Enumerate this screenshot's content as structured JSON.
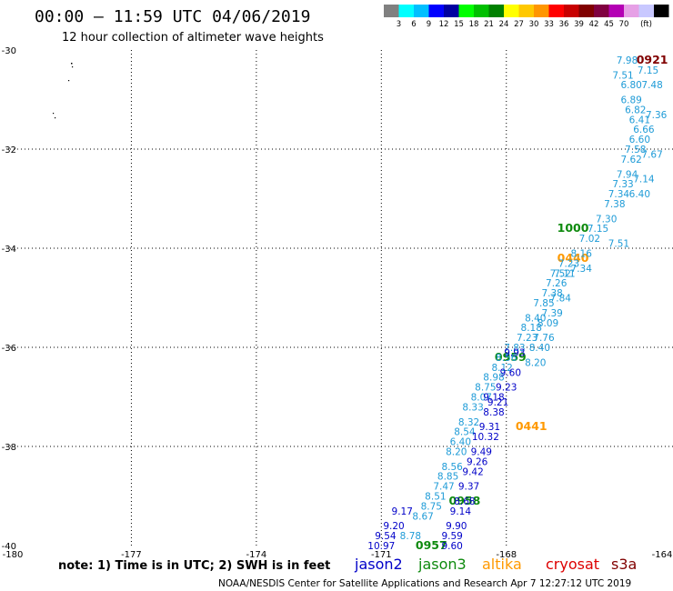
{
  "title": "00:00 – 11:59 UTC 04/06/2019",
  "subtitle": "12 hour collection of altimeter wave heights",
  "colorbar": {
    "colors": [
      "#808080",
      "#00ffff",
      "#00bfff",
      "#0000ff",
      "#0000a0",
      "#00ff00",
      "#00c000",
      "#008000",
      "#ffff00",
      "#ffc800",
      "#ff9600",
      "#ff0000",
      "#c80000",
      "#800000",
      "#800040",
      "#b400b4",
      "#e6a0e6",
      "#c8c8ff",
      "#000000"
    ],
    "labels": [
      "3",
      "6",
      "9",
      "12",
      "15",
      "18",
      "21",
      "24",
      "27",
      "30",
      "33",
      "36",
      "39",
      "42",
      "45",
      "70"
    ],
    "unit": "(ft)"
  },
  "chart_data": {
    "type": "scatter",
    "title": "00:00 – 11:59 UTC 04/06/2019",
    "subtitle": "12 hour collection of altimeter wave heights",
    "xlim": [
      -180,
      -164
    ],
    "ylim": [
      -40,
      -30
    ],
    "x_ticks": [
      -180,
      -177,
      -174,
      -171,
      -168,
      -164
    ],
    "x_tick_labels": [
      "-180",
      "-177",
      "-174",
      "-171",
      "-168",
      "-164"
    ],
    "y_ticks": [
      -30,
      -32,
      -34,
      -36,
      -38,
      -40
    ],
    "y_tick_labels": [
      "-30",
      "-32",
      "-34",
      "-36",
      "-38",
      "-40"
    ],
    "grid": true,
    "series": [
      {
        "name": "jason2",
        "color": "#0000c8",
        "points": []
      },
      {
        "name": "jason3",
        "color": "#0e8a0e",
        "points": [
          {
            "x": -167.9,
            "y": -36.2,
            "label": "0959"
          },
          {
            "x": -166.4,
            "y": -33.6,
            "label": "1000"
          },
          {
            "x": -169.0,
            "y": -39.1,
            "label": "0958"
          },
          {
            "x": -169.8,
            "y": -40.0,
            "label": "0957"
          }
        ]
      },
      {
        "name": "altika",
        "color": "#ff9900",
        "points": [
          {
            "x": -166.4,
            "y": -34.2,
            "label": "0440"
          },
          {
            "x": -167.4,
            "y": -37.6,
            "label": "0441"
          }
        ]
      },
      {
        "name": "cryosat",
        "color": "#dd0000",
        "points": []
      },
      {
        "name": "s3a",
        "color": "#800000",
        "points": [
          {
            "x": -164.5,
            "y": -30.2,
            "label": "0921"
          }
        ]
      },
      {
        "name": "",
        "color": "#1e9bd7",
        "track": "west",
        "points": [
          {
            "x": -165.1,
            "y": -30.2,
            "value": "7.98"
          },
          {
            "x": -165.2,
            "y": -30.5,
            "value": "7.51"
          },
          {
            "x": -165.0,
            "y": -30.7,
            "value": "6.80"
          },
          {
            "x": -165.0,
            "y": -31.0,
            "value": "6.89"
          },
          {
            "x": -164.9,
            "y": -31.2,
            "value": "6.82"
          },
          {
            "x": -164.8,
            "y": -31.4,
            "value": "6.41"
          },
          {
            "x": -164.7,
            "y": -31.6,
            "value": "6.66"
          },
          {
            "x": -164.8,
            "y": -31.8,
            "value": "6.60"
          },
          {
            "x": -164.9,
            "y": -32.0,
            "value": "7.58"
          },
          {
            "x": -165.0,
            "y": -32.2,
            "value": "7.62"
          },
          {
            "x": -165.1,
            "y": -32.5,
            "value": "7.94"
          },
          {
            "x": -165.2,
            "y": -32.7,
            "value": "7.33"
          },
          {
            "x": -165.3,
            "y": -32.9,
            "value": "7.34"
          },
          {
            "x": -165.4,
            "y": -33.1,
            "value": "7.38"
          },
          {
            "x": -165.6,
            "y": -33.4,
            "value": "7.30"
          },
          {
            "x": -165.8,
            "y": -33.6,
            "value": "7.15"
          },
          {
            "x": -166.0,
            "y": -33.8,
            "value": "7.02"
          },
          {
            "x": -166.2,
            "y": -34.1,
            "value": "8.16"
          },
          {
            "x": -166.5,
            "y": -34.3,
            "value": "7.23"
          },
          {
            "x": -166.7,
            "y": -34.5,
            "value": "7.52"
          },
          {
            "x": -166.8,
            "y": -34.7,
            "value": "7.26"
          },
          {
            "x": -166.9,
            "y": -34.9,
            "value": "7.38"
          },
          {
            "x": -167.1,
            "y": -35.1,
            "value": "7.85"
          },
          {
            "x": -167.3,
            "y": -35.4,
            "value": "8.40"
          },
          {
            "x": -167.4,
            "y": -35.6,
            "value": "8.18"
          },
          {
            "x": -167.5,
            "y": -35.8,
            "value": "7.23"
          },
          {
            "x": -167.8,
            "y": -36.0,
            "value": "7.83"
          },
          {
            "x": -168.0,
            "y": -36.2,
            "value": "8.56"
          },
          {
            "x": -168.1,
            "y": -36.4,
            "value": "8.12"
          },
          {
            "x": -168.3,
            "y": -36.6,
            "value": "8.98"
          },
          {
            "x": -168.5,
            "y": -36.8,
            "value": "8.75"
          },
          {
            "x": -168.6,
            "y": -37.0,
            "value": "8.07"
          },
          {
            "x": -168.8,
            "y": -37.2,
            "value": "8.33"
          },
          {
            "x": -168.9,
            "y": -37.5,
            "value": "8.32"
          },
          {
            "x": -169.0,
            "y": -37.7,
            "value": "8.54"
          },
          {
            "x": -169.1,
            "y": -37.9,
            "value": "6.40"
          },
          {
            "x": -169.2,
            "y": -38.1,
            "value": "8.20"
          },
          {
            "x": -169.3,
            "y": -38.4,
            "value": "8.56"
          },
          {
            "x": -169.4,
            "y": -38.6,
            "value": "8.85"
          },
          {
            "x": -169.5,
            "y": -38.8,
            "value": "7.47"
          },
          {
            "x": -169.7,
            "y": -39.0,
            "value": "8.51"
          },
          {
            "x": -169.8,
            "y": -39.2,
            "value": "8.75"
          },
          {
            "x": -170.0,
            "y": -39.4,
            "value": "8.67"
          },
          {
            "x": -170.3,
            "y": -39.8,
            "value": "8.78"
          }
        ]
      },
      {
        "name": "",
        "color": "#1e9bd7",
        "track": "east",
        "points": [
          {
            "x": -164.6,
            "y": -30.4,
            "value": "7.15"
          },
          {
            "x": -164.5,
            "y": -30.7,
            "value": "7.48"
          },
          {
            "x": -164.4,
            "y": -31.3,
            "value": "7.36"
          },
          {
            "x": -164.5,
            "y": -32.1,
            "value": "7.67"
          },
          {
            "x": -164.7,
            "y": -32.6,
            "value": "7.14"
          },
          {
            "x": -164.8,
            "y": -32.9,
            "value": "6.40"
          },
          {
            "x": -165.3,
            "y": -33.9,
            "value": "7.51"
          },
          {
            "x": -166.2,
            "y": -34.4,
            "value": "7.34"
          },
          {
            "x": -166.6,
            "y": -34.5,
            "value": "7.11"
          },
          {
            "x": -166.7,
            "y": -35.0,
            "value": "7.84"
          },
          {
            "x": -166.9,
            "y": -35.3,
            "value": "7.39"
          },
          {
            "x": -167.0,
            "y": -35.5,
            "value": "8.09"
          },
          {
            "x": -167.1,
            "y": -35.8,
            "value": "7.76"
          },
          {
            "x": -167.2,
            "y": -36.0,
            "value": "8.40"
          },
          {
            "x": -167.3,
            "y": -36.3,
            "value": "8.20"
          }
        ]
      },
      {
        "name": "",
        "color": "#0000c8",
        "track": "jason2",
        "points": [
          {
            "x": -167.9,
            "y": -36.5,
            "value": "9.60"
          },
          {
            "x": -168.0,
            "y": -36.8,
            "value": "9.23"
          },
          {
            "x": -168.2,
            "y": -37.1,
            "value": "9.21"
          },
          {
            "x": -168.3,
            "y": -37.3,
            "value": "8.38"
          },
          {
            "x": -168.4,
            "y": -37.6,
            "value": "9.31"
          },
          {
            "x": -168.5,
            "y": -37.8,
            "value": "10.32"
          },
          {
            "x": -168.6,
            "y": -38.1,
            "value": "9.49"
          },
          {
            "x": -168.7,
            "y": -38.3,
            "value": "9.26"
          },
          {
            "x": -168.8,
            "y": -38.5,
            "value": "9.42"
          },
          {
            "x": -168.9,
            "y": -38.8,
            "value": "9.37"
          },
          {
            "x": -169.0,
            "y": -39.1,
            "value": "8.68"
          },
          {
            "x": -169.1,
            "y": -39.3,
            "value": "9.14"
          },
          {
            "x": -169.2,
            "y": -39.6,
            "value": "9.90"
          },
          {
            "x": -169.3,
            "y": -39.8,
            "value": "9.59"
          },
          {
            "x": -169.3,
            "y": -40.0,
            "value": "9.60"
          },
          {
            "x": -168.3,
            "y": -37.0,
            "value": "9.18"
          },
          {
            "x": -170.5,
            "y": -39.3,
            "value": "9.17"
          },
          {
            "x": -170.7,
            "y": -39.6,
            "value": "9.20"
          },
          {
            "x": -170.9,
            "y": -39.8,
            "value": "9.54"
          },
          {
            "x": -171.0,
            "y": -40.0,
            "value": "10.97"
          },
          {
            "x": -167.8,
            "y": -36.1,
            "value": "9.93"
          }
        ]
      }
    ]
  },
  "note": "note: 1) Time is in UTC; 2) SWH is in feet",
  "legend": [
    {
      "name": "jason2",
      "color": "#0000c8"
    },
    {
      "name": "jason3",
      "color": "#0e8a0e"
    },
    {
      "name": "altika",
      "color": "#ff9900"
    },
    {
      "name": "cryosat",
      "color": "#dd0000"
    },
    {
      "name": "s3a",
      "color": "#800000"
    }
  ],
  "credit": "NOAA/NESDIS Center for Satellite Applications and Research    Apr  7 12:27:12 UTC 2019"
}
